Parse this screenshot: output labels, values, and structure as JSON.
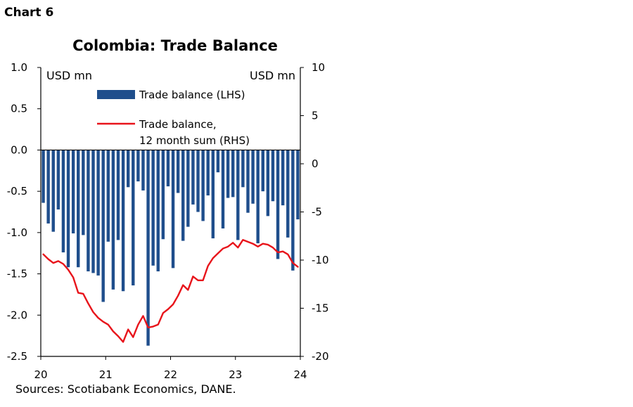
{
  "header": {
    "label": "Chart 6"
  },
  "footer": {
    "source": "Sources: Scotiabank Economics, DANE."
  },
  "chart_data": {
    "type": "bar+line",
    "title": "Colombia: Trade Balance",
    "left_axis": {
      "unit": "USD mn",
      "ylim": [
        -2.5,
        1.0
      ],
      "ticks": [
        "1.0",
        "0.5",
        "0.0",
        "-0.5",
        "-1.0",
        "-1.5",
        "-2.0",
        "-2.5"
      ]
    },
    "right_axis": {
      "unit": "USD mn",
      "ylim": [
        -20,
        10
      ],
      "ticks": [
        "10",
        "5",
        "0",
        "-5",
        "-10",
        "-15",
        "-20"
      ]
    },
    "x_axis": {
      "start": 20,
      "end": 24,
      "ticks": [
        "20",
        "21",
        "22",
        "23",
        "24"
      ]
    },
    "legend": {
      "placement": "top",
      "entries": [
        "Trade balance (LHS)",
        "Trade balance,",
        "12 month  sum (RHS)"
      ]
    },
    "colors": {
      "bars": "#1F4E8C",
      "line": "#E8141B"
    },
    "series": [
      {
        "name": "Trade balance (LHS)",
        "axis": "left",
        "values": [
          -0.64,
          -0.89,
          -0.99,
          -0.72,
          -1.24,
          -1.42,
          -1.01,
          -1.42,
          -1.03,
          -1.47,
          -1.49,
          -1.52,
          -1.84,
          -1.11,
          -1.69,
          -1.09,
          -1.71,
          -0.45,
          -1.64,
          -0.38,
          -0.49,
          -2.37,
          -1.4,
          -1.47,
          -1.08,
          -0.44,
          -1.43,
          -0.52,
          -1.1,
          -0.93,
          -0.66,
          -0.75,
          -0.86,
          -0.55,
          -1.07,
          -0.27,
          -0.95,
          -0.58,
          -0.57,
          -1.09,
          -0.45,
          -0.76,
          -0.65,
          -1.13,
          -0.5,
          -0.8,
          -0.62,
          -1.32,
          -0.67,
          -1.06,
          -1.46,
          -0.84
        ]
      },
      {
        "name": "Trade balance, 12 month sum (RHS)",
        "axis": "right",
        "values": [
          -9.4,
          -9.9,
          -10.3,
          -10.1,
          -10.4,
          -11.0,
          -11.8,
          -13.4,
          -13.5,
          -14.5,
          -15.4,
          -16.0,
          -16.4,
          -16.7,
          -17.4,
          -17.9,
          -18.5,
          -17.2,
          -18.0,
          -16.7,
          -15.8,
          -17.0,
          -16.9,
          -16.7,
          -15.5,
          -15.1,
          -14.6,
          -13.7,
          -12.6,
          -13.1,
          -11.7,
          -12.1,
          -12.1,
          -10.6,
          -9.8,
          -9.3,
          -8.8,
          -8.6,
          -8.2,
          -8.7,
          -7.9,
          -8.1,
          -8.3,
          -8.6,
          -8.3,
          -8.4,
          -8.7,
          -9.2,
          -9.1,
          -9.4,
          -10.3,
          -10.7
        ]
      }
    ]
  }
}
